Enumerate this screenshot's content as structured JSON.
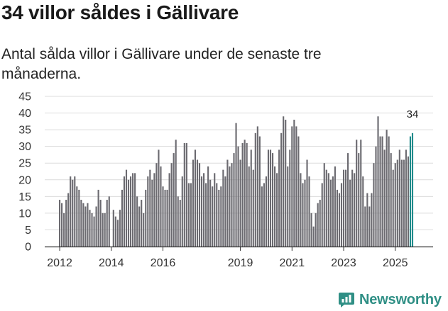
{
  "header": {
    "title": "34 villor såldes i Gällivare",
    "subtitle": "Antal sålda villor i Gällivare under de senaste tre månaderna."
  },
  "brand": {
    "name": "Newsworthy",
    "icon": "newsworthy-logo-icon",
    "color": "#2f8f85"
  },
  "chart_data": {
    "type": "bar",
    "title": "34 villor såldes i Gällivare",
    "xlabel": "",
    "ylabel": "",
    "ylim": [
      0,
      45
    ],
    "yticks": [
      0,
      5,
      10,
      15,
      20,
      25,
      30,
      35,
      40,
      45
    ],
    "grid": true,
    "bar_color": "#6b6a70",
    "highlight_color": "#1f8a8a",
    "start": "2012-01",
    "xticks": [
      {
        "label": "2012",
        "index": 0
      },
      {
        "label": "2014",
        "index": 24
      },
      {
        "label": "2016",
        "index": 48
      },
      {
        "label": "2019",
        "index": 84
      },
      {
        "label": "2021",
        "index": 108
      },
      {
        "label": "2023",
        "index": 132
      },
      {
        "label": "2025",
        "index": 156
      }
    ],
    "values": [
      14,
      13,
      10,
      14,
      16,
      21,
      20,
      21,
      18,
      17,
      14,
      13,
      12,
      13,
      11,
      10,
      9,
      12,
      17,
      14,
      10,
      10,
      14,
      15,
      0,
      11,
      9,
      8,
      11,
      17,
      21,
      23,
      20,
      21,
      22,
      22,
      15,
      12,
      14,
      10,
      17,
      21,
      23,
      20,
      22,
      25,
      29,
      24,
      18,
      17,
      17,
      22,
      25,
      28,
      32,
      15,
      14,
      21,
      31,
      31,
      19,
      19,
      26,
      29,
      26,
      25,
      21,
      22,
      19,
      24,
      20,
      18,
      22,
      19,
      17,
      18,
      23,
      21,
      26,
      24,
      25,
      28,
      37,
      30,
      26,
      31,
      32,
      31,
      24,
      29,
      23,
      34,
      36,
      33,
      18,
      19,
      21,
      29,
      29,
      28,
      24,
      22,
      29,
      34,
      39,
      38,
      24,
      29,
      36,
      38,
      36,
      33,
      22,
      19,
      20,
      26,
      21,
      10,
      6,
      10,
      13,
      14,
      19,
      25,
      23,
      22,
      20,
      21,
      24,
      17,
      16,
      19,
      23,
      23,
      28,
      20,
      23,
      22,
      32,
      28,
      32,
      21,
      12,
      16,
      12,
      16,
      25,
      30,
      39,
      33,
      33,
      29,
      35,
      33,
      28,
      23,
      25,
      26,
      29,
      26,
      26,
      29,
      27,
      33,
      34
    ],
    "highlight_last": 2,
    "annotations": [
      {
        "label": "34",
        "index": 164
      }
    ]
  }
}
